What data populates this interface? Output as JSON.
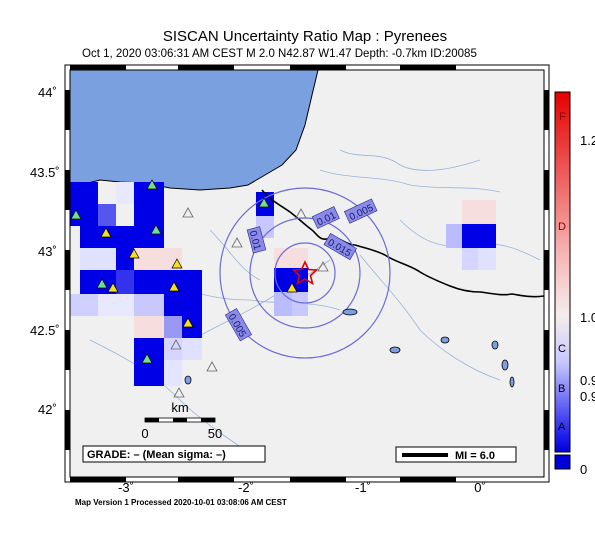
{
  "title": "SISCAN Uncertainty Ratio Map : Pyrenees",
  "subtitle": "Oct  1, 2020 03:06:31 AM CEST   M 2.0   N42.87 W1.47   Depth: -0.7km   ID:20085",
  "footer": "Map Version 1 Processed 2020-10-01 03:08:06 AM CEST",
  "axes": {
    "lat_labels": [
      "44˚",
      "43.5˚",
      "43˚",
      "42.5˚",
      "42˚"
    ],
    "lon_labels": [
      "-3˚",
      "-2˚",
      "-1˚",
      "0˚"
    ]
  },
  "scale_bar": {
    "unit": "km",
    "left": "0",
    "right": "50"
  },
  "grade_box": "GRADE: – (Mean sigma: –)",
  "mi_box": "MI = 6.0",
  "contours": [
    "0.005",
    "0.01",
    "0.015",
    "0.01",
    "0.005"
  ],
  "colorbar": {
    "grades": [
      "F",
      "D",
      "C",
      "B",
      "A"
    ],
    "values": [
      "1.2",
      "1.0",
      "0.9",
      "0.9",
      "0"
    ],
    "colors": {
      "top": "#e60000",
      "mid": "#f5f0f0",
      "bottom": "#0000d8"
    }
  },
  "epicenter": {
    "symbol": "star-icon",
    "color": "#e00000"
  },
  "colors": {
    "sea": "#7aa0e0",
    "land": "#f0f0f0",
    "cell_blue": "#0000e0",
    "station": "#6be38a"
  }
}
